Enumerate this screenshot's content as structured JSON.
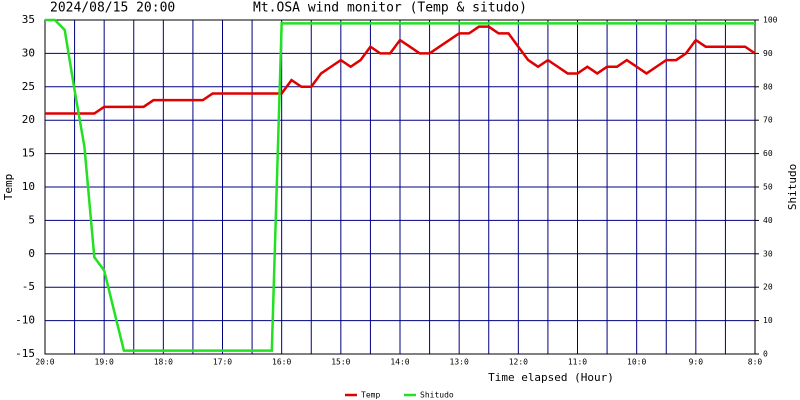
{
  "chart_data": {
    "type": "line",
    "title": "Mt.OSA wind monitor (Temp & situdo)",
    "subtitle": "2024/08/15 20:00",
    "x_label": "Time elapsed (Hour)",
    "y_label": "Temp",
    "y2_label": "Shitudo",
    "x": [
      0,
      10,
      20,
      30,
      40,
      50,
      60,
      70,
      80,
      90,
      100,
      110,
      120,
      130,
      140,
      150,
      160,
      170,
      180,
      190,
      200,
      210,
      220,
      230,
      240,
      250,
      260,
      270,
      280,
      290,
      300,
      310,
      320,
      330,
      340,
      350,
      360,
      370,
      380,
      390,
      400,
      410,
      420,
      430,
      440,
      450,
      460,
      470,
      480,
      490,
      500,
      510,
      520,
      530,
      540,
      550,
      560,
      570,
      580,
      590,
      600,
      610,
      620,
      630,
      640,
      650,
      660,
      670,
      680,
      690,
      700,
      710,
      720
    ],
    "xlim": [
      0,
      720
    ],
    "xticks": [
      {
        "value": 0,
        "label": "20:0"
      },
      {
        "value": 60,
        "label": "19:0"
      },
      {
        "value": 120,
        "label": "18:0"
      },
      {
        "value": 180,
        "label": "17:0"
      },
      {
        "value": 240,
        "label": "16:0"
      },
      {
        "value": 300,
        "label": "15:0"
      },
      {
        "value": 360,
        "label": "14:0"
      },
      {
        "value": 420,
        "label": "13:0"
      },
      {
        "value": 480,
        "label": "12:0"
      },
      {
        "value": 540,
        "label": "11:0"
      },
      {
        "value": 600,
        "label": "10:0"
      },
      {
        "value": 660,
        "label": "9:0"
      },
      {
        "value": 720,
        "label": "8:0"
      }
    ],
    "ylim": [
      -15,
      35
    ],
    "yticks": [
      -15,
      -10,
      -5,
      0,
      5,
      10,
      15,
      20,
      25,
      30,
      35
    ],
    "y2lim": [
      0,
      100
    ],
    "y2ticks": [
      0,
      10,
      20,
      30,
      40,
      50,
      60,
      70,
      80,
      90,
      100
    ],
    "grid": true,
    "series": [
      {
        "name": "Temp",
        "color": "#e00000",
        "values": [
          21,
          21,
          21,
          21,
          21,
          21,
          22,
          22,
          22,
          22,
          22,
          23,
          23,
          23,
          23,
          23,
          23,
          24,
          24,
          24,
          24,
          24,
          24,
          24,
          24,
          26,
          25,
          25,
          27,
          28,
          29,
          28,
          29,
          31,
          30,
          30,
          32,
          31,
          30,
          30,
          31,
          32,
          33,
          33,
          34,
          34,
          33,
          33,
          31,
          29,
          28,
          29,
          28,
          27,
          27,
          28,
          27,
          28,
          28,
          29,
          28,
          27,
          28,
          29,
          29,
          30,
          32,
          31,
          31,
          31,
          31,
          31,
          30
        ]
      },
      {
        "name": "Shitudo",
        "color": "#22e022",
        "axis": "y2",
        "values": [
          100,
          100,
          97,
          79,
          62,
          29,
          25,
          13,
          1,
          1,
          1,
          1,
          1,
          1,
          1,
          1,
          1,
          1,
          1,
          1,
          1,
          1,
          1,
          1,
          99,
          99,
          99,
          99,
          99,
          99,
          99,
          99,
          99,
          99,
          99,
          99,
          99,
          99,
          99,
          99,
          99,
          99,
          99,
          99,
          99,
          99,
          99,
          99,
          99,
          99,
          99,
          99,
          99,
          99,
          99,
          99,
          99,
          99,
          99,
          99,
          99,
          99,
          99,
          99,
          99,
          99,
          99,
          99,
          99,
          99,
          99,
          99,
          99
        ]
      }
    ]
  }
}
